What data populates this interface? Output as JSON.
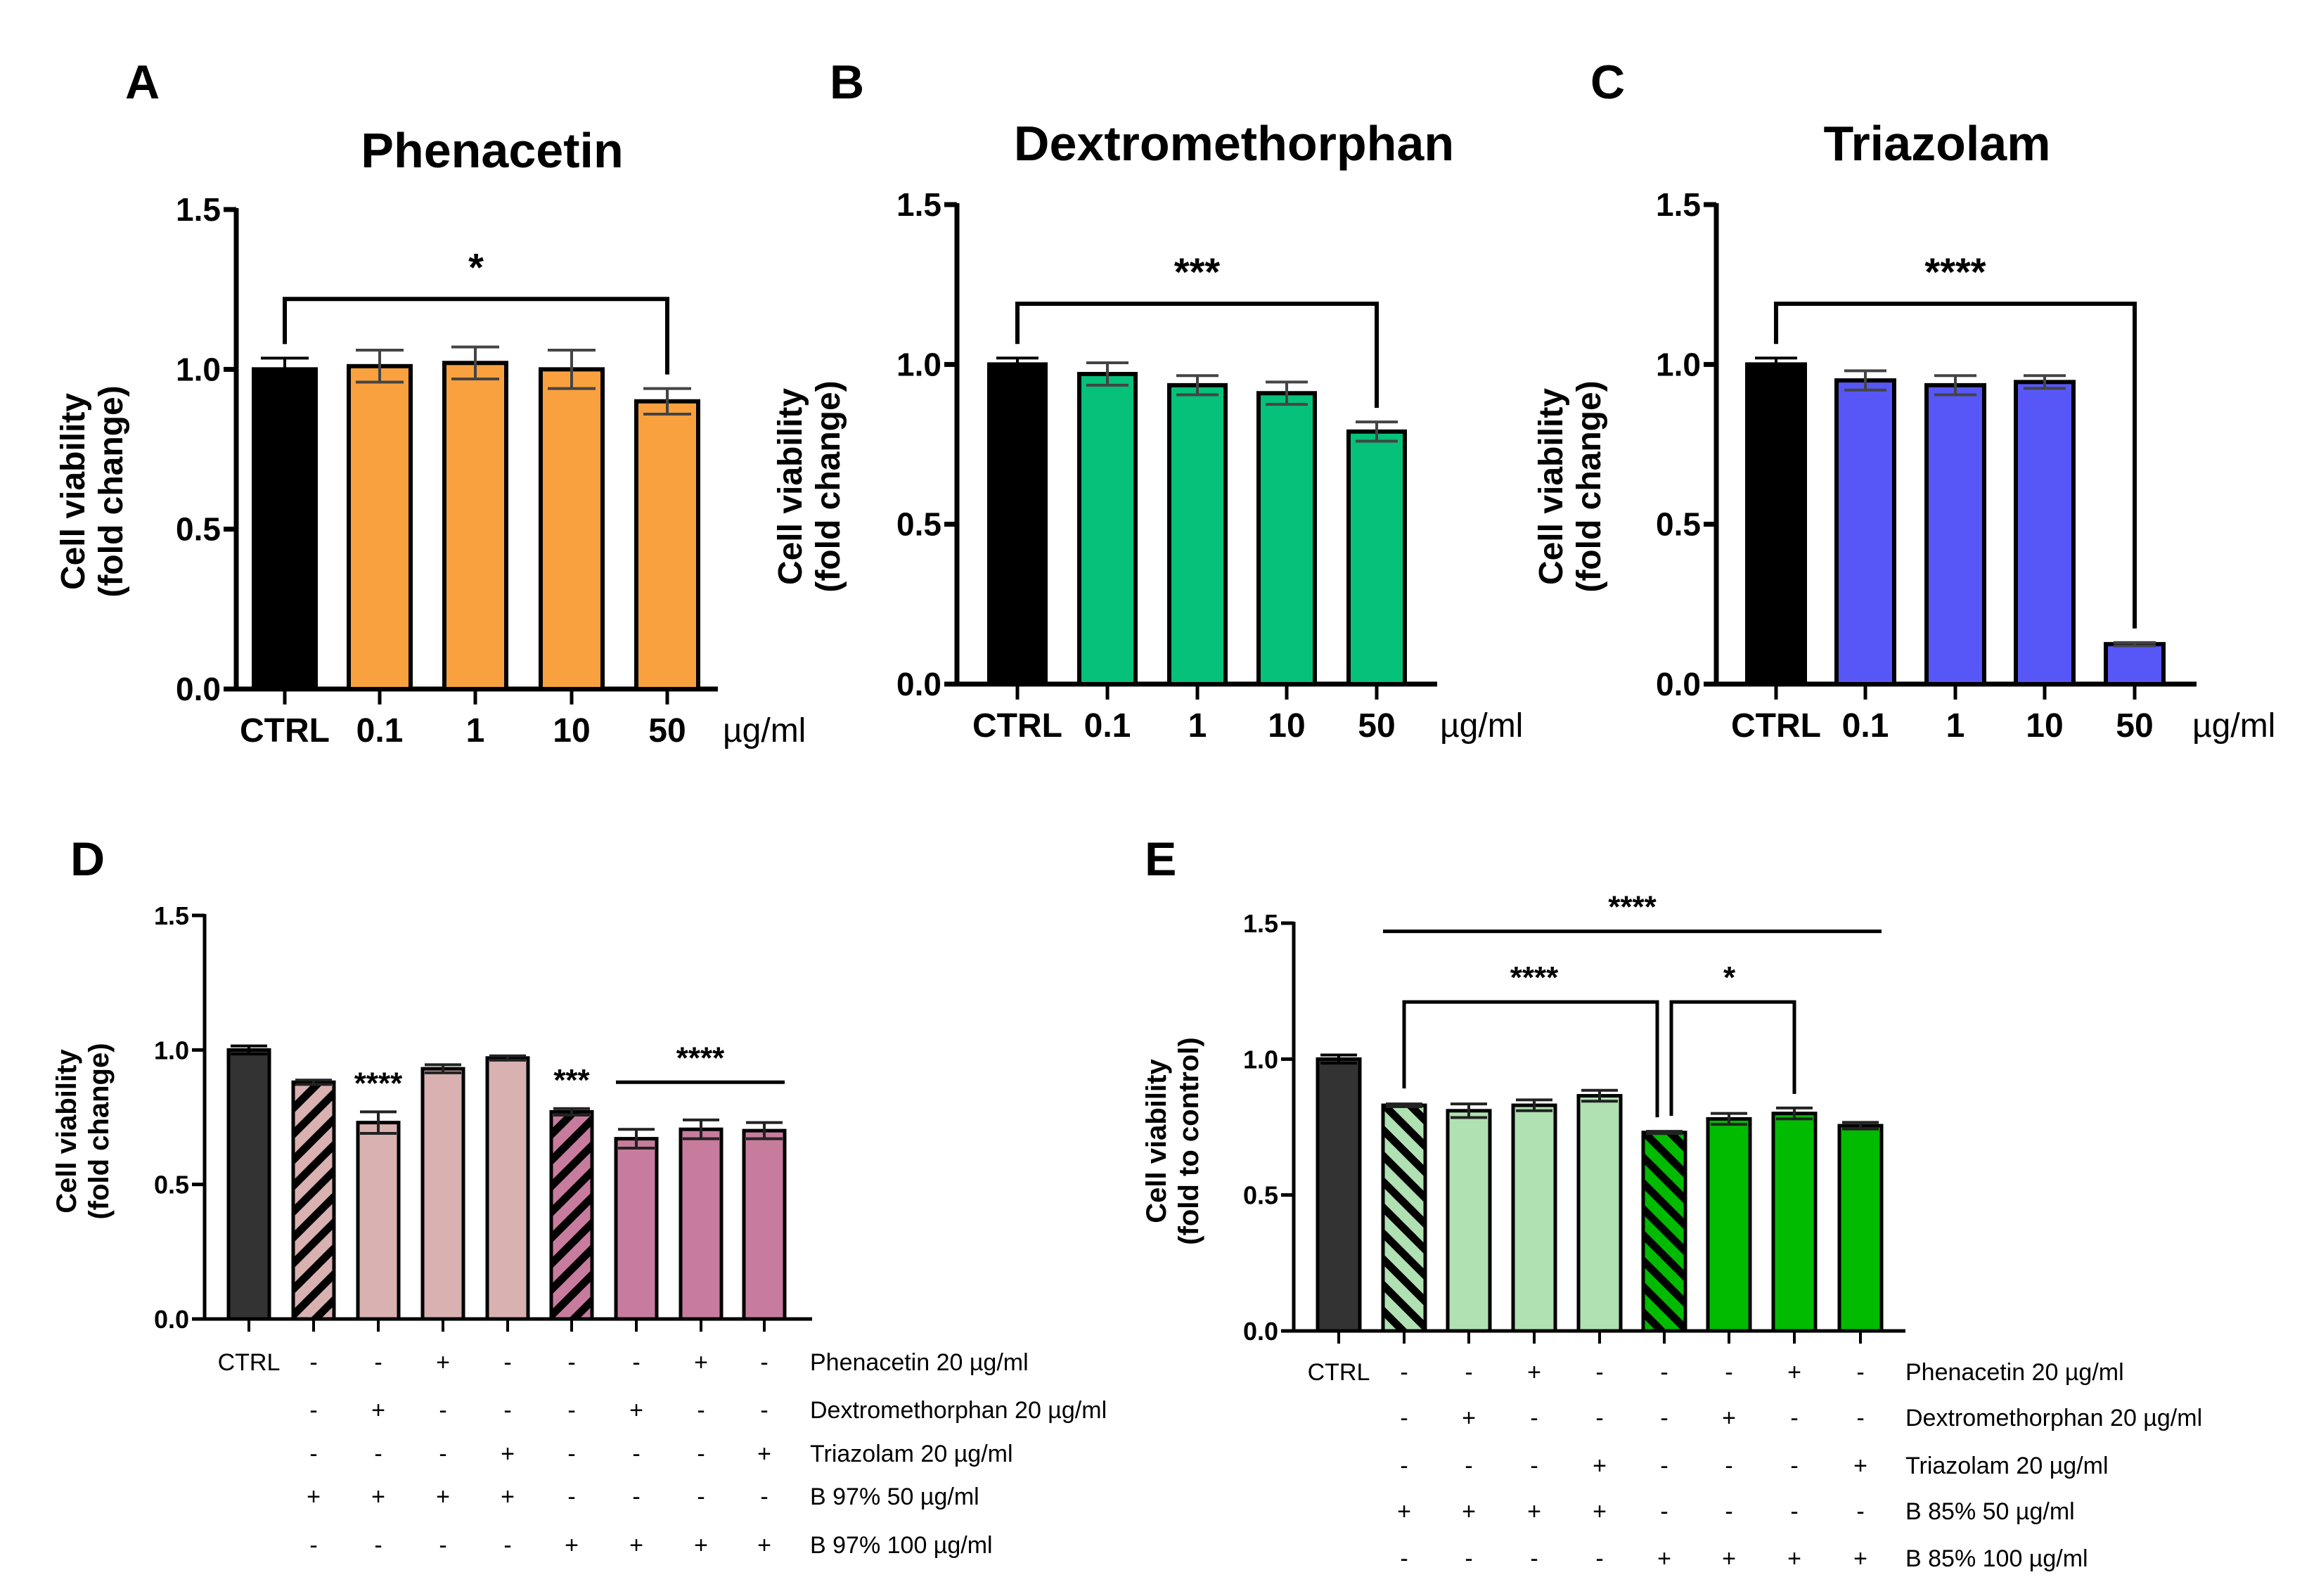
{
  "chart_data": [
    {
      "id": "A",
      "type": "bar",
      "panel_label": "A",
      "title": "Phenacetin",
      "xlabel": "",
      "x_unit": "µg/ml",
      "ylabel": [
        "Cell viability",
        "(fold change)"
      ],
      "ylim": [
        0,
        1.5
      ],
      "yticks": [
        "0.0",
        "0.5",
        "1.0",
        "1.5"
      ],
      "grid": false,
      "categories": [
        "CTRL",
        "0.1",
        "1",
        "10",
        "50"
      ],
      "values": [
        1.0,
        1.01,
        1.02,
        1.0,
        0.9
      ],
      "errors": [
        0.035,
        0.05,
        0.05,
        0.06,
        0.04
      ],
      "colors": [
        "#000000",
        "#F9A13F",
        "#F9A13F",
        "#F9A13F",
        "#F9A13F"
      ],
      "significance": [
        {
          "from": 0,
          "to": 4,
          "level": 1.22,
          "label": "*",
          "type": "bracket"
        }
      ]
    },
    {
      "id": "B",
      "type": "bar",
      "panel_label": "B",
      "title": "Dextromethorphan",
      "xlabel": "",
      "x_unit": "µg/ml",
      "ylabel": [
        "Cell viability",
        "(fold change)"
      ],
      "ylim": [
        0,
        1.5
      ],
      "yticks": [
        "0.0",
        "0.5",
        "1.0",
        "1.5"
      ],
      "grid": false,
      "categories": [
        "CTRL",
        "0.1",
        "1",
        "10",
        "50"
      ],
      "values": [
        1.0,
        0.97,
        0.935,
        0.91,
        0.79
      ],
      "errors": [
        0.02,
        0.035,
        0.03,
        0.035,
        0.03
      ],
      "colors": [
        "#000000",
        "#05C17A",
        "#05C17A",
        "#05C17A",
        "#05C17A"
      ],
      "significance": [
        {
          "from": 0,
          "to": 4,
          "level": 1.19,
          "label": "***",
          "type": "bracket"
        }
      ]
    },
    {
      "id": "C",
      "type": "bar",
      "panel_label": "C",
      "title": "Triazolam",
      "xlabel": "",
      "x_unit": "µg/ml",
      "ylabel": [
        "Cell viability",
        "(fold change)"
      ],
      "ylim": [
        0,
        1.5
      ],
      "yticks": [
        "0.0",
        "0.5",
        "1.0",
        "1.5"
      ],
      "grid": false,
      "categories": [
        "CTRL",
        "0.1",
        "1",
        "10",
        "50"
      ],
      "values": [
        1.0,
        0.95,
        0.935,
        0.945,
        0.125
      ],
      "errors": [
        0.02,
        0.03,
        0.03,
        0.02,
        0.005
      ],
      "colors": [
        "#000000",
        "#5757F8",
        "#5757F8",
        "#5757F8",
        "#5757F8"
      ],
      "significance": [
        {
          "from": 0,
          "to": 4,
          "level": 1.19,
          "label": "****",
          "type": "bracket"
        }
      ]
    },
    {
      "id": "D",
      "type": "bar",
      "panel_label": "D",
      "title": "",
      "ylabel": [
        "Cell viability",
        "(fold change)"
      ],
      "ylim": [
        0,
        1.5
      ],
      "yticks": [
        "0.0",
        "0.5",
        "1.0",
        "1.5"
      ],
      "grid": false,
      "categories": [
        "CTRL",
        "B97 50",
        "B97 50 + Dex",
        "B97 50 + Phen",
        "B97 50 + Tri",
        "B97 100",
        "B97 100 + Dex",
        "B97 100 + Phen",
        "B97 100 + Tri"
      ],
      "values": [
        1.0,
        0.88,
        0.73,
        0.93,
        0.97,
        0.77,
        0.67,
        0.705,
        0.7
      ],
      "errors": [
        0.015,
        0.008,
        0.04,
        0.015,
        0.008,
        0.012,
        0.035,
        0.035,
        0.03
      ],
      "colors": [
        "#333333",
        "#D9B1B1",
        "#D9B1B1",
        "#D9B1B1",
        "#D9B1B1",
        "#C77C9E",
        "#C77C9E",
        "#C77C9E",
        "#C77C9E"
      ],
      "hatched": [
        false,
        true,
        false,
        false,
        false,
        true,
        false,
        false,
        false
      ],
      "hatch_direction": "backslash",
      "bar_annotations": [
        {
          "index": 2,
          "label": "****"
        },
        {
          "index": 5,
          "label": "***"
        }
      ],
      "significance": [
        {
          "from": 6,
          "to": 8,
          "level": 0.88,
          "label": "****",
          "type": "line"
        }
      ],
      "treatment_table": {
        "ctrl_label": "CTRL",
        "rows": [
          {
            "label": "Phenacetin 20 µg/ml",
            "marks": [
              "-",
              "-",
              "+",
              "-",
              "-",
              "-",
              "+",
              "-"
            ]
          },
          {
            "label": "Dextromethorphan 20 µg/ml",
            "marks": [
              "-",
              "+",
              "-",
              "-",
              "-",
              "+",
              "-",
              "-"
            ]
          },
          {
            "label": "Triazolam 20 µg/ml",
            "marks": [
              "-",
              "-",
              "-",
              "+",
              "-",
              "-",
              "-",
              "+"
            ]
          },
          {
            "label": "B 97% 50 µg/ml",
            "marks": [
              "+",
              "+",
              "+",
              "+",
              "-",
              "-",
              "-",
              "-"
            ]
          },
          {
            "label": "B 97% 100 µg/ml",
            "marks": [
              "-",
              "-",
              "-",
              "-",
              "+",
              "+",
              "+",
              "+"
            ]
          }
        ]
      }
    },
    {
      "id": "E",
      "type": "bar",
      "panel_label": "E",
      "title": "",
      "ylabel": [
        "Cell viability",
        "(fold to control)"
      ],
      "ylim": [
        0,
        1.5
      ],
      "yticks": [
        "0.0",
        "0.5",
        "1.0",
        "1.5"
      ],
      "grid": false,
      "categories": [
        "CTRL",
        "B85 50",
        "B85 50 + Dex",
        "B85 50 + Phen",
        "B85 50 + Tri",
        "B85 100",
        "B85 100 + Dex",
        "B85 100 + Phen",
        "B85 100 + Tri"
      ],
      "values": [
        1.0,
        0.83,
        0.81,
        0.83,
        0.865,
        0.73,
        0.78,
        0.8,
        0.755
      ],
      "errors": [
        0.015,
        0.005,
        0.025,
        0.02,
        0.02,
        0.004,
        0.02,
        0.02,
        0.012
      ],
      "colors": [
        "#333333",
        "#B0E1B2",
        "#B0E1B2",
        "#B0E1B2",
        "#B0E1B2",
        "#00BB00",
        "#00BB00",
        "#00BB00",
        "#00BB00"
      ],
      "hatched": [
        false,
        true,
        false,
        false,
        false,
        true,
        false,
        false,
        false
      ],
      "hatch_direction": "slash",
      "bar_annotations": [],
      "significance": [
        {
          "from": 1,
          "to": 8,
          "level": 1.47,
          "label": "****",
          "type": "line"
        },
        {
          "from": 1,
          "to": 5,
          "level": 1.21,
          "label": "****",
          "type": "bracket"
        },
        {
          "from": 5,
          "to": 7,
          "level": 1.21,
          "label": "*",
          "type": "bracket"
        }
      ],
      "treatment_table": {
        "ctrl_label": "CTRL",
        "rows": [
          {
            "label": "Phenacetin 20 µg/ml",
            "marks": [
              "-",
              "-",
              "+",
              "-",
              "-",
              "-",
              "+",
              "-"
            ]
          },
          {
            "label": "Dextromethorphan 20 µg/ml",
            "marks": [
              "-",
              "+",
              "-",
              "-",
              "-",
              "+",
              "-",
              "-"
            ]
          },
          {
            "label": "Triazolam 20 µg/ml",
            "marks": [
              "-",
              "-",
              "-",
              "+",
              "-",
              "-",
              "-",
              "+"
            ]
          },
          {
            "label": "B 85% 50 µg/ml",
            "marks": [
              "+",
              "+",
              "+",
              "+",
              "-",
              "-",
              "-",
              "-"
            ]
          },
          {
            "label": "B 85% 100 µg/ml",
            "marks": [
              "-",
              "-",
              "-",
              "-",
              "+",
              "+",
              "+",
              "+"
            ]
          }
        ]
      }
    }
  ]
}
